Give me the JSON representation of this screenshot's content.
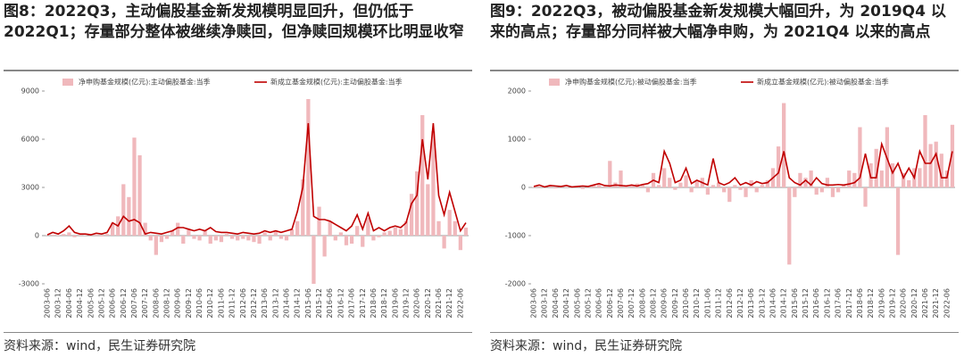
{
  "chart_data": [
    {
      "type": "combo",
      "title": "图8：2022Q3，主动偏股基金新发规模明显回升，但仍低于 2022Q1；存量部分整体被继续净赎回，但净赎回规模环比明显收窄",
      "source": "资料来源：wind，民生证券研究院",
      "categories": [
        "2003-06",
        null,
        "2003-12",
        null,
        "2004-06",
        null,
        "2004-12",
        null,
        "2005-06",
        null,
        "2005-12",
        null,
        "2006-06",
        null,
        "2006-12",
        null,
        "2007-06",
        null,
        "2007-12",
        null,
        "2008-06",
        null,
        "2008-12",
        null,
        "2009-06",
        null,
        "2009-12",
        null,
        "2010-06",
        null,
        "2010-12",
        null,
        "2011-06",
        null,
        "2011-12",
        null,
        "2012-06",
        null,
        "2012-12",
        null,
        "2013-06",
        null,
        "2013-12",
        null,
        "2014-06",
        null,
        "2014-12",
        null,
        "2015-06",
        null,
        "2015-12",
        null,
        "2016-06",
        null,
        "2016-12",
        null,
        "2017-06",
        null,
        "2017-12",
        null,
        "2018-06",
        null,
        "2018-12",
        null,
        "2019-06",
        null,
        "2019-12",
        null,
        "2020-06",
        null,
        "2020-12",
        null,
        "2021-06",
        null,
        "2021-12",
        null,
        "2022-06",
        null
      ],
      "ylim": [
        -3000,
        9000
      ],
      "yticks": [
        -3000,
        0,
        3000,
        6000,
        9000
      ],
      "series": [
        {
          "name": "净申购基金规模(亿元):主动偏股基金:当季",
          "type": "bar",
          "color": "#f0b8bc",
          "values": [
            20,
            50,
            30,
            100,
            200,
            -100,
            50,
            30,
            20,
            50,
            -50,
            100,
            800,
            1200,
            3200,
            2400,
            6100,
            5000,
            800,
            -300,
            -1200,
            -400,
            -200,
            300,
            800,
            -500,
            400,
            -200,
            -300,
            300,
            -500,
            -300,
            -400,
            100,
            -200,
            -300,
            -200,
            -300,
            -400,
            -500,
            200,
            -300,
            300,
            -200,
            -300,
            400,
            900,
            3500,
            8500,
            -3000,
            1800,
            -1300,
            900,
            -300,
            200,
            -600,
            -500,
            600,
            -700,
            1100,
            -300,
            -100,
            200,
            300,
            500,
            400,
            900,
            2600,
            4000,
            7500,
            3200,
            6500,
            900,
            -800,
            1600,
            900,
            -900,
            500
          ]
        },
        {
          "name": "新成立基金规模(亿元):主动偏股基金:当季",
          "type": "line",
          "color": "#c00000",
          "values": [
            50,
            200,
            100,
            300,
            600,
            200,
            100,
            100,
            50,
            150,
            100,
            200,
            800,
            600,
            1200,
            900,
            1000,
            800,
            100,
            200,
            150,
            100,
            200,
            300,
            500,
            500,
            400,
            300,
            400,
            300,
            500,
            250,
            200,
            200,
            150,
            100,
            200,
            150,
            100,
            150,
            300,
            200,
            300,
            200,
            300,
            400,
            1500,
            3000,
            7000,
            1200,
            1000,
            1000,
            900,
            700,
            500,
            300,
            600,
            1300,
            400,
            1400,
            300,
            500,
            300,
            500,
            600,
            500,
            800,
            2000,
            2500,
            6000,
            3500,
            7000,
            2500,
            1300,
            2700,
            1500,
            300,
            800
          ]
        }
      ]
    },
    {
      "type": "combo",
      "title": "图9：2022Q3，被动偏股基金新发规模大幅回升，为 2019Q4 以来的高点；存量部分同样被大幅净申购，为 2021Q4 以来的高点",
      "source": "资料来源：wind，民生证券研究院",
      "categories": [
        "2003-06",
        null,
        "2003-12",
        null,
        "2004-06",
        null,
        "2004-12",
        null,
        "2005-06",
        null,
        "2005-12",
        null,
        "2006-06",
        null,
        "2006-12",
        null,
        "2007-06",
        null,
        "2007-12",
        null,
        "2008-06",
        null,
        "2008-12",
        null,
        "2009-06",
        null,
        "2009-12",
        null,
        "2010-06",
        null,
        "2010-12",
        null,
        "2011-06",
        null,
        "2011-12",
        null,
        "2012-06",
        null,
        "2012-12",
        null,
        "2013-06",
        null,
        "2013-12",
        null,
        "2014-06",
        null,
        "2014-12",
        null,
        "2015-06",
        null,
        "2015-12",
        null,
        "2016-06",
        null,
        "2016-12",
        null,
        "2017-06",
        null,
        "2017-12",
        null,
        "2018-06",
        null,
        "2018-12",
        null,
        "2019-06",
        null,
        "2019-12",
        null,
        "2020-06",
        null,
        "2020-12",
        null,
        "2021-06",
        null,
        "2021-12",
        null,
        "2022-06",
        null
      ],
      "ylim": [
        -2000,
        2000
      ],
      "yticks": [
        -2000,
        -1000,
        0,
        1000,
        2000
      ],
      "series": [
        {
          "name": "净申购基金规模(亿元):被动偏股基金:当季",
          "type": "bar",
          "color": "#f0b8bc",
          "values": [
            10,
            20,
            10,
            30,
            -20,
            20,
            10,
            10,
            20,
            -30,
            20,
            40,
            80,
            20,
            550,
            100,
            350,
            50,
            30,
            80,
            60,
            -100,
            300,
            50,
            400,
            200,
            -50,
            100,
            250,
            -100,
            150,
            200,
            -150,
            50,
            100,
            -100,
            -300,
            50,
            -50,
            -200,
            150,
            -100,
            50,
            150,
            400,
            850,
            1750,
            -1600,
            -200,
            300,
            200,
            350,
            -150,
            -100,
            200,
            -200,
            -100,
            50,
            350,
            300,
            1250,
            -400,
            500,
            800,
            350,
            1250,
            500,
            -1400,
            300,
            150,
            400,
            400,
            1500,
            900,
            950,
            700,
            350,
            1300
          ]
        },
        {
          "name": "新成立基金规模(亿元):被动偏股基金:当季",
          "type": "line",
          "color": "#c00000",
          "values": [
            20,
            50,
            10,
            40,
            30,
            20,
            40,
            10,
            20,
            30,
            20,
            50,
            80,
            40,
            30,
            50,
            40,
            30,
            50,
            30,
            60,
            80,
            150,
            100,
            750,
            500,
            100,
            150,
            400,
            80,
            150,
            100,
            50,
            600,
            100,
            50,
            100,
            200,
            50,
            100,
            50,
            120,
            80,
            100,
            200,
            300,
            750,
            200,
            100,
            50,
            150,
            50,
            200,
            80,
            50,
            50,
            60,
            50,
            70,
            100,
            200,
            700,
            200,
            200,
            900,
            600,
            300,
            500,
            200,
            400,
            200,
            750,
            500,
            500,
            700,
            200,
            200,
            750
          ]
        }
      ]
    }
  ]
}
